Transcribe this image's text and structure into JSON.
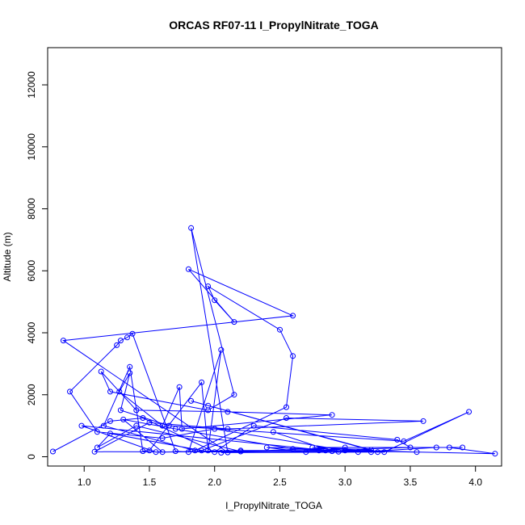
{
  "chart_data": {
    "type": "line",
    "title": "ORCAS RF07-11 I_PropylNitrate_TOGA",
    "xlabel": "I_PropylNitrate_TOGA",
    "ylabel": "Altitude (m)",
    "xlim": [
      0.72,
      4.2
    ],
    "ylim": [
      -300,
      13200
    ],
    "xticks": [
      1.0,
      1.5,
      2.0,
      2.5,
      3.0,
      3.5,
      4.0
    ],
    "xtick_labels": [
      "1.0",
      "1.5",
      "2.0",
      "2.5",
      "3.0",
      "3.5",
      "4.0"
    ],
    "yticks": [
      0,
      2000,
      4000,
      6000,
      8000,
      10000,
      12000
    ],
    "ytick_labels": [
      "0",
      "2000",
      "4000",
      "6000",
      "8000",
      "10000",
      "12000"
    ],
    "color": "#0000ff",
    "marker": "open-circle",
    "series": [
      {
        "points": [
          [
            0.76,
            170
          ],
          [
            1.2,
            1150
          ],
          [
            1.45,
            1250
          ],
          [
            2.0,
            150
          ],
          [
            2.3,
            1000
          ],
          [
            3.4,
            550
          ],
          [
            3.5,
            300
          ],
          [
            2.8,
            200
          ],
          [
            1.6,
            150
          ],
          [
            1.3,
            1200
          ],
          [
            1.7,
            900
          ],
          [
            2.6,
            250
          ],
          [
            3.2,
            150
          ],
          [
            1.08,
            160
          ],
          [
            1.5,
            1100
          ],
          [
            2.1,
            900
          ],
          [
            3.6,
            1150
          ],
          [
            2.55,
            1250
          ],
          [
            1.9,
            200
          ],
          [
            1.2,
            750
          ],
          [
            1.1,
            300
          ],
          [
            1.4,
            1000
          ],
          [
            2.2,
            170
          ],
          [
            3.0,
            300
          ],
          [
            3.8,
            300
          ],
          [
            4.15,
            100
          ],
          [
            3.0,
            200
          ],
          [
            2.0,
            900
          ],
          [
            1.6,
            600
          ],
          [
            1.1,
            800
          ],
          [
            0.89,
            2100
          ],
          [
            1.25,
            3600
          ],
          [
            1.28,
            3750
          ],
          [
            1.33,
            3850
          ],
          [
            1.37,
            3970
          ],
          [
            1.7,
            180
          ],
          [
            1.8,
            150
          ],
          [
            2.05,
            3450
          ],
          [
            1.95,
            200
          ],
          [
            1.9,
            2400
          ],
          [
            1.5,
            200
          ],
          [
            1.45,
            180
          ],
          [
            1.35,
            2900
          ],
          [
            1.15,
            1000
          ],
          [
            1.85,
            200
          ],
          [
            2.55,
            1600
          ],
          [
            2.6,
            3250
          ],
          [
            2.5,
            4100
          ],
          [
            1.95,
            5500
          ],
          [
            2.0,
            5050
          ],
          [
            2.15,
            4350
          ],
          [
            1.8,
            6050
          ],
          [
            2.6,
            4550
          ],
          [
            0.84,
            3750
          ],
          [
            2.1,
            140
          ],
          [
            1.82,
            7380
          ],
          [
            2.15,
            2000
          ],
          [
            1.95,
            1500
          ],
          [
            1.2,
            2100
          ],
          [
            1.13,
            2750
          ],
          [
            1.4,
            1500
          ],
          [
            2.1,
            1450
          ],
          [
            2.9,
            1350
          ],
          [
            1.75,
            900
          ],
          [
            1.73,
            2250
          ],
          [
            1.6,
            1000
          ],
          [
            1.27,
            2100
          ],
          [
            1.35,
            2700
          ],
          [
            1.28,
            1500
          ],
          [
            1.65,
            1000
          ],
          [
            3.45,
            500
          ],
          [
            3.95,
            1450
          ],
          [
            3.3,
            150
          ],
          [
            2.7,
            150
          ],
          [
            2.4,
            300
          ],
          [
            3.55,
            150
          ],
          [
            2.85,
            200
          ],
          [
            2.2,
            200
          ],
          [
            1.55,
            150
          ],
          [
            0.98,
            1000
          ],
          [
            2.95,
            160
          ],
          [
            3.1,
            150
          ],
          [
            3.7,
            300
          ],
          [
            3.9,
            300
          ],
          [
            2.75,
            300
          ],
          [
            3.2,
            220
          ],
          [
            1.82,
            1800
          ],
          [
            1.95,
            1650
          ],
          [
            3.25,
            150
          ],
          [
            2.05,
            130
          ],
          [
            2.9,
            180
          ],
          [
            2.45,
            800
          ]
        ]
      }
    ]
  }
}
